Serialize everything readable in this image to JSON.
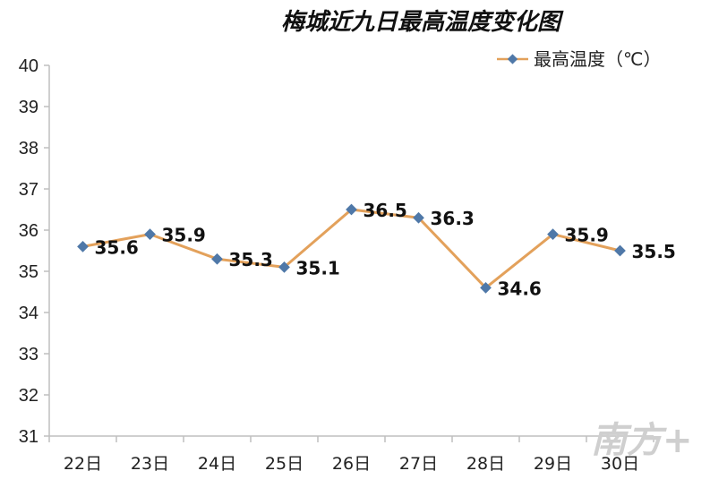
{
  "chart_data": {
    "type": "line",
    "title": "梅城近九日最高温度变化图",
    "categories": [
      "22日",
      "23日",
      "24日",
      "25日",
      "26日",
      "27日",
      "28日",
      "29日",
      "30日"
    ],
    "series": [
      {
        "name": "最高温度（℃）",
        "values": [
          35.6,
          35.9,
          35.3,
          35.1,
          36.5,
          36.3,
          34.6,
          35.9,
          35.5
        ],
        "line_color": "#E3A15B",
        "marker_color": "#4F78A8"
      }
    ],
    "xlabel": "",
    "ylabel": "",
    "ylim": [
      31,
      40
    ],
    "yticks": [
      31,
      32,
      33,
      34,
      35,
      36,
      37,
      38,
      39,
      40
    ],
    "grid": false,
    "legend_position": "top-right"
  },
  "watermark": "南方+"
}
